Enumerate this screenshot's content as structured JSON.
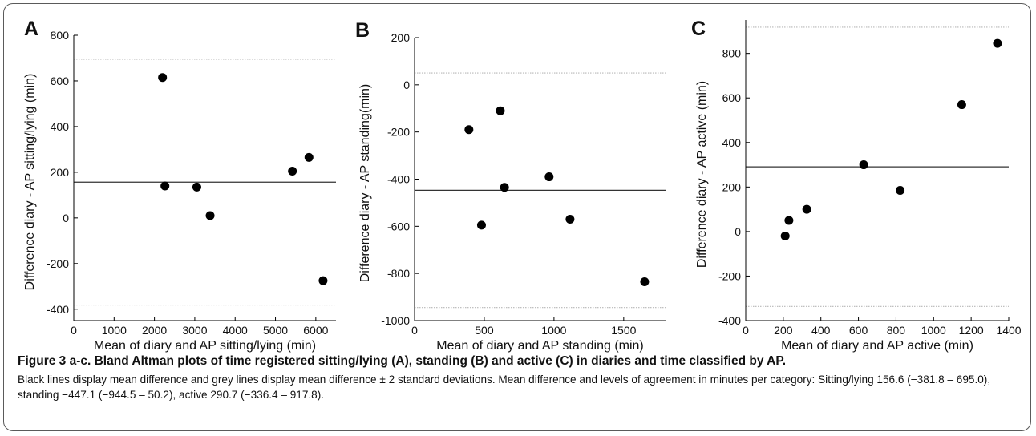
{
  "figure": {
    "title": "Figure 3 a-c. Bland Altman plots of time registered sitting/lying (A), standing (B) and active (C) in diaries and time classified by AP.",
    "caption": "Black lines display mean difference and grey lines display mean difference ± 2 standard deviations. Mean difference and levels of agreement in minutes per category: Sitting/lying 156.6 (−381.8 – 695.0), standing −447.1 (−944.5 – 50.2), active 290.7 (−336.4 – 917.8)."
  },
  "colors": {
    "mean_line": "#333333",
    "limit_line": "#b8b8b8",
    "points": "#000000",
    "frame": "#5a5a5a"
  },
  "chart_data": [
    {
      "type": "scatter",
      "panel": "A",
      "xlabel": "Mean of diary and AP sitting/lying (min)",
      "ylabel": "Difference diary - AP sitting/lying (min)",
      "xlim": [
        0,
        6500
      ],
      "ylim": [
        -450,
        800
      ],
      "xticks": [
        0,
        1000,
        2000,
        3000,
        4000,
        5000,
        6000
      ],
      "yticks": [
        -400,
        -200,
        0,
        200,
        400,
        600,
        800
      ],
      "mean_difference": 156.6,
      "limits_of_agreement": [
        -381.8,
        695.0
      ],
      "points": [
        {
          "x": 2200,
          "y": 615
        },
        {
          "x": 2260,
          "y": 140
        },
        {
          "x": 3050,
          "y": 135
        },
        {
          "x": 3380,
          "y": 10
        },
        {
          "x": 5420,
          "y": 205
        },
        {
          "x": 5830,
          "y": 265
        },
        {
          "x": 6180,
          "y": -275
        }
      ]
    },
    {
      "type": "scatter",
      "panel": "B",
      "xlabel": "Mean of diary and AP standing (min)",
      "ylabel": "Difference diary - AP standing(min)",
      "xlim": [
        0,
        1800
      ],
      "ylim": [
        -1000,
        200
      ],
      "xticks": [
        0,
        500,
        1000,
        1500
      ],
      "yticks": [
        -1000,
        -800,
        -600,
        -400,
        -200,
        0,
        200
      ],
      "mean_difference": -447.1,
      "limits_of_agreement": [
        -944.5,
        50.2
      ],
      "points": [
        {
          "x": 390,
          "y": -190
        },
        {
          "x": 480,
          "y": -595
        },
        {
          "x": 615,
          "y": -110
        },
        {
          "x": 645,
          "y": -435
        },
        {
          "x": 965,
          "y": -390
        },
        {
          "x": 1115,
          "y": -570
        },
        {
          "x": 1650,
          "y": -835
        }
      ]
    },
    {
      "type": "scatter",
      "panel": "C",
      "xlabel": "Mean of diary and AP active (min)",
      "ylabel": "Difference diary - AP active (min)",
      "xlim": [
        0,
        1400
      ],
      "ylim": [
        -400,
        950
      ],
      "xticks": [
        0,
        200,
        400,
        600,
        800,
        1000,
        1200,
        1400
      ],
      "yticks": [
        -400,
        -200,
        0,
        200,
        400,
        600,
        800
      ],
      "mean_difference": 290.7,
      "limits_of_agreement": [
        -336.4,
        917.8
      ],
      "points": [
        {
          "x": 210,
          "y": -20
        },
        {
          "x": 230,
          "y": 50
        },
        {
          "x": 325,
          "y": 100
        },
        {
          "x": 628,
          "y": 300
        },
        {
          "x": 822,
          "y": 185
        },
        {
          "x": 1150,
          "y": 570
        },
        {
          "x": 1340,
          "y": 845
        }
      ]
    }
  ]
}
